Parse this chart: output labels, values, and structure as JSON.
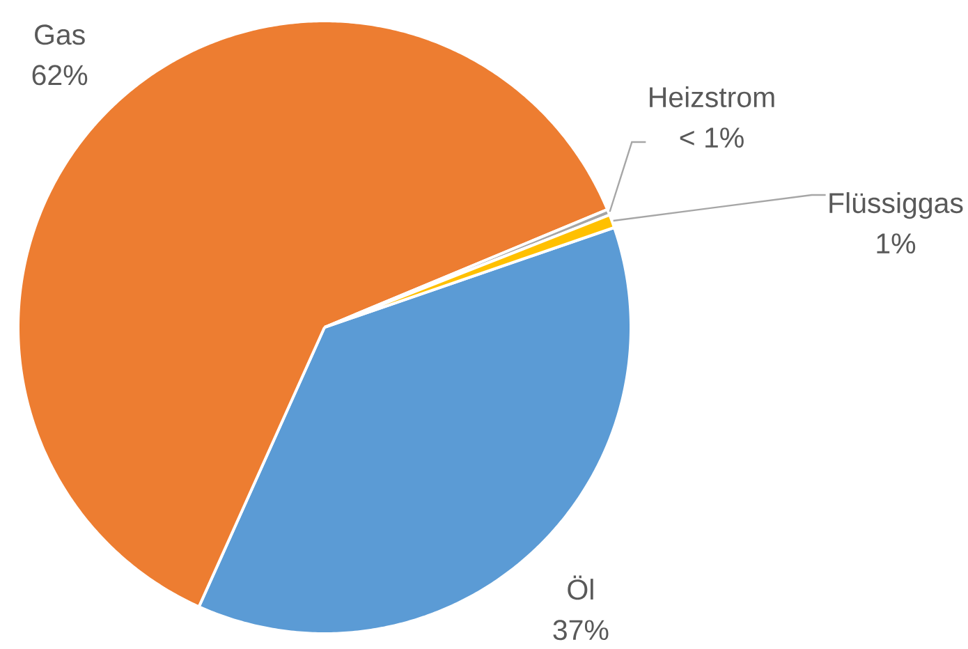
{
  "chart_data": {
    "type": "pie",
    "categories": [
      "Öl",
      "Gas",
      "Heizstrom",
      "Flüssiggas"
    ],
    "values": [
      37,
      62,
      0.3,
      0.7
    ],
    "colors": [
      "#5b9bd5",
      "#ed7d31",
      "#a5a5a5",
      "#ffc000"
    ],
    "value_labels": [
      "37%",
      "62%",
      "< 1%",
      "1%"
    ]
  }
}
